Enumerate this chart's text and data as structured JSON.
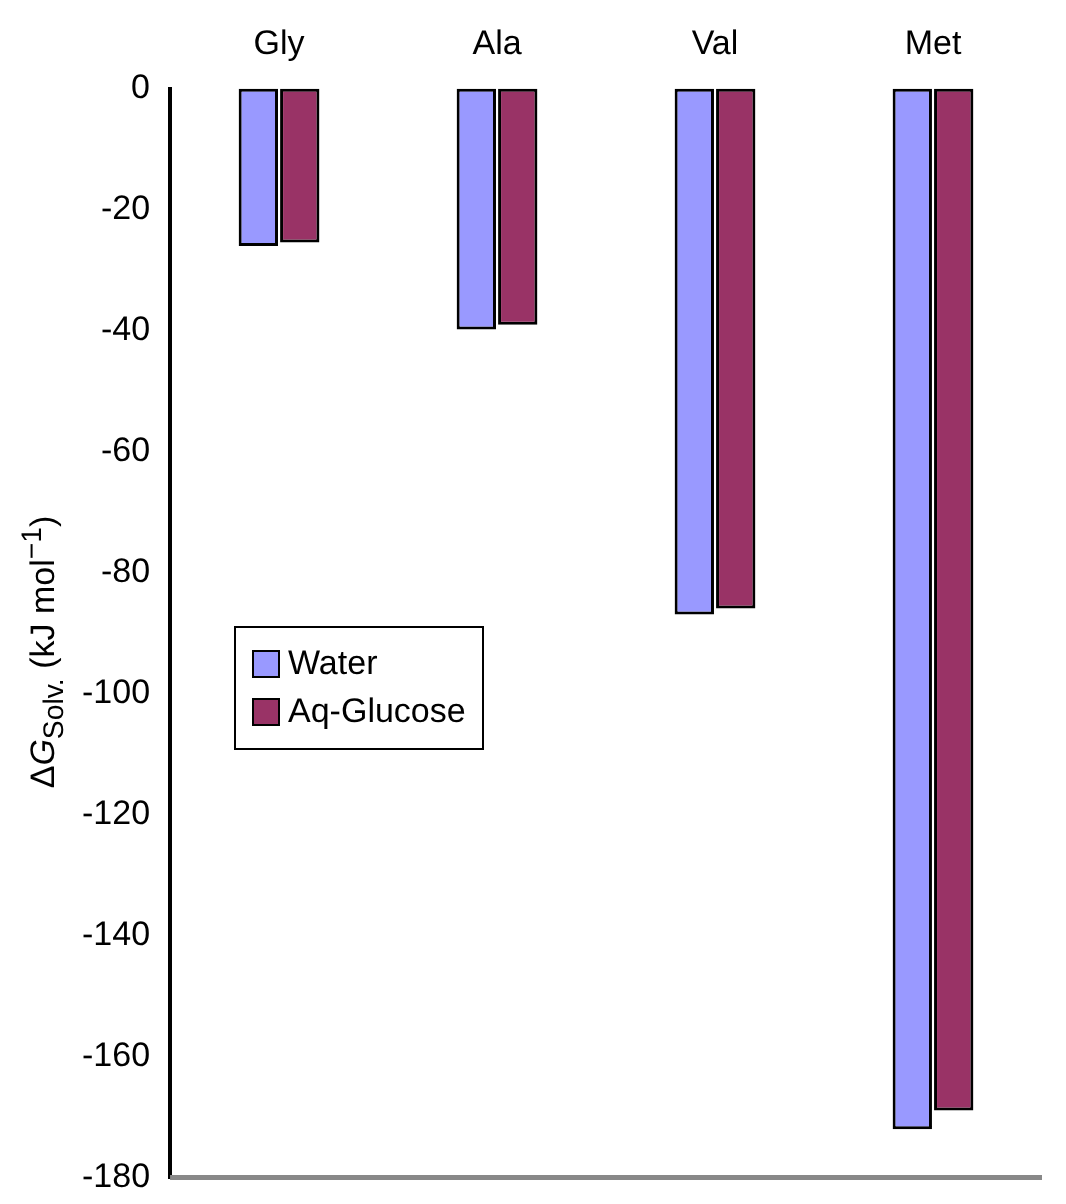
{
  "chart_data": {
    "type": "bar",
    "ylabel": "ΔG$_{Solv.}$ (kJ mol$^{−1}$)",
    "categories": [
      "Gly",
      "Ala",
      "Val",
      "Met"
    ],
    "series": [
      {
        "name": "Water",
        "color": "#9999ff",
        "values": [
          -26,
          -39.8,
          -86.9,
          -172
        ]
      },
      {
        "name": "Aq-Glucose",
        "color": "#993366",
        "values": [
          -25.4,
          -39,
          -85.9,
          -168.9
        ]
      }
    ],
    "ylim": [
      -180,
      0
    ],
    "yticks": [
      0,
      -20,
      -40,
      -60,
      -80,
      -100,
      -120,
      -140,
      -160,
      -180
    ],
    "grid": false,
    "legend": "left"
  }
}
